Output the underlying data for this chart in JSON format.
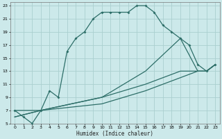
{
  "title": "",
  "xlabel": "Humidex (Indice chaleur)",
  "bg_color": "#cce9ea",
  "grid_color": "#aacfcf",
  "line_color": "#2d6e68",
  "xlim": [
    -0.5,
    23.5
  ],
  "ylim": [
    5,
    23.5
  ],
  "xticks": [
    0,
    1,
    2,
    3,
    4,
    5,
    6,
    7,
    8,
    9,
    10,
    11,
    12,
    13,
    14,
    15,
    16,
    17,
    18,
    19,
    20,
    21,
    22,
    23
  ],
  "yticks": [
    5,
    7,
    9,
    11,
    13,
    15,
    17,
    19,
    21,
    23
  ],
  "line1_x": [
    0,
    1,
    2,
    3,
    4,
    5,
    6,
    7,
    8,
    9,
    10,
    11,
    12,
    13,
    14,
    15,
    16,
    17,
    18,
    19,
    20,
    21,
    22,
    23
  ],
  "line1_y": [
    7,
    6,
    5,
    7,
    10,
    9,
    16,
    18,
    19,
    21,
    22,
    22,
    22,
    22,
    23,
    23,
    22,
    20,
    19,
    18,
    17,
    14,
    13,
    14
  ],
  "line2_x": [
    0,
    3,
    10,
    15,
    19,
    21,
    22,
    23
  ],
  "line2_y": [
    7,
    7,
    9,
    13,
    18,
    13,
    13,
    14
  ],
  "line3_x": [
    0,
    3,
    10,
    15,
    19,
    21,
    22,
    23
  ],
  "line3_y": [
    6,
    7,
    9,
    11,
    13,
    13,
    13,
    14
  ],
  "line4_x": [
    0,
    3,
    10,
    15,
    19,
    21,
    22,
    23
  ],
  "line4_y": [
    6,
    7,
    8,
    10,
    12,
    13,
    13,
    14
  ]
}
